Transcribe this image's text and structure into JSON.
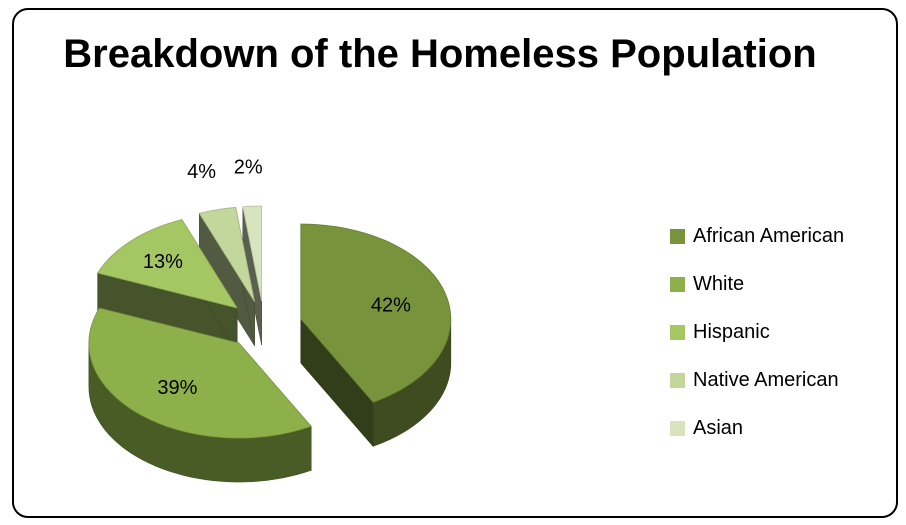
{
  "chart_data": {
    "type": "pie",
    "title": "Breakdown of the Homeless Population",
    "categories": [
      "African American",
      "White",
      "Hispanic",
      "Native American",
      "Asian"
    ],
    "values": [
      42,
      39,
      13,
      4,
      2
    ],
    "data_labels": [
      "42%",
      "39%",
      "13%",
      "4%",
      "2%"
    ],
    "colors": [
      "#77933c",
      "#8db04a",
      "#a4c763",
      "#c3d69b",
      "#d7e4bd"
    ],
    "exploded": true,
    "three_d": true,
    "legend": "right"
  }
}
